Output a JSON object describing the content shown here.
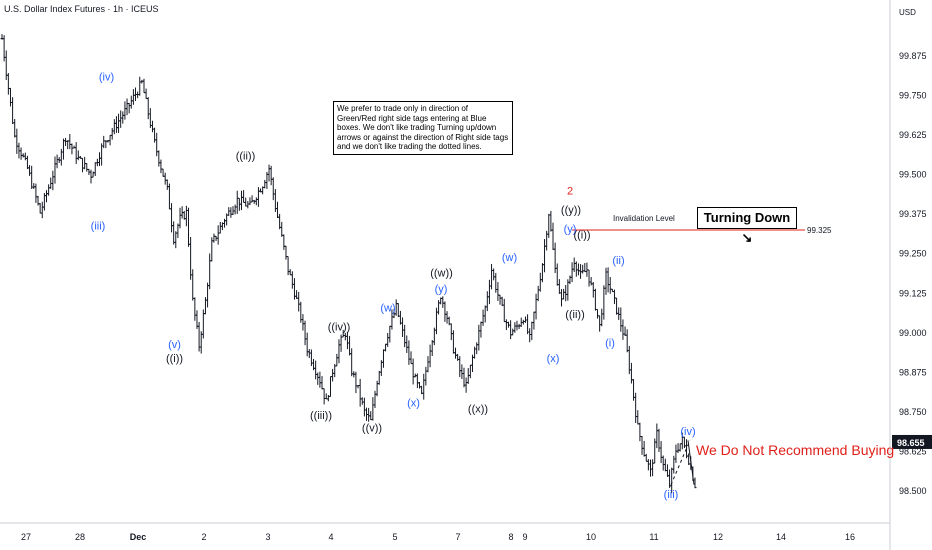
{
  "chart_title": "U.S. Dollar Index Futures · 1h · ICEUS",
  "currency": "USD",
  "note": "We prefer to trade only in direction of Green/Red right side tags entering at Blue boxes. We don't like trading Turning up/down arrows or against the direction of Right side tags and we don't like trading the dotted lines.",
  "turning_label": "Turning Down",
  "turning_arrow": "↘",
  "recommendation": "We Do Not Recommend Buying",
  "invalidation_label": "Invalidation Level",
  "colors": {
    "blue_label": "#2962ff",
    "red_label": "#e0201b",
    "black_label": "#131722",
    "invalidation_line": "#e0201b"
  },
  "chart_data": {
    "type": "bar",
    "subtype": "ohlc",
    "xlabel": "",
    "ylabel": "",
    "ylim": [
      98.42,
      100.05
    ],
    "x_ticks": [
      "27",
      "28",
      "Dec",
      "2",
      "3",
      "4",
      "5",
      "7",
      "8",
      "9",
      "10",
      "11",
      "12",
      "14",
      "16"
    ],
    "y_ticks": [
      "99.875",
      "99.750",
      "99.625",
      "99.500",
      "99.375",
      "99.250",
      "99.125",
      "99.000",
      "98.875",
      "98.750",
      "98.625",
      "98.500"
    ],
    "last_price": "98.655",
    "invalidation_level": "99.325",
    "price_path": [
      [
        0,
        99.93
      ],
      [
        2,
        99.62
      ],
      [
        4,
        99.52
      ],
      [
        6,
        99.38
      ],
      [
        8,
        99.5
      ],
      [
        10,
        99.62
      ],
      [
        12,
        99.55
      ],
      [
        14,
        99.5
      ],
      [
        16,
        99.6
      ],
      [
        18,
        99.66
      ],
      [
        20,
        99.72
      ],
      [
        22,
        99.79
      ],
      [
        24,
        99.6
      ],
      [
        26,
        99.45
      ],
      [
        27,
        99.3
      ],
      [
        28,
        99.36
      ],
      [
        29,
        99.38
      ],
      [
        30,
        99.1
      ],
      [
        31,
        98.96
      ],
      [
        32,
        99.1
      ],
      [
        33,
        99.28
      ],
      [
        35,
        99.36
      ],
      [
        37,
        99.42
      ],
      [
        39,
        99.4
      ],
      [
        41,
        99.47
      ],
      [
        42,
        99.52
      ],
      [
        43,
        99.4
      ],
      [
        44,
        99.3
      ],
      [
        45,
        99.2
      ],
      [
        46,
        99.13
      ],
      [
        47,
        99.05
      ],
      [
        48,
        98.95
      ],
      [
        50,
        98.85
      ],
      [
        51,
        98.78
      ],
      [
        52,
        98.88
      ],
      [
        53,
        98.96
      ],
      [
        54,
        99.0
      ],
      [
        55,
        98.88
      ],
      [
        56,
        98.82
      ],
      [
        57,
        98.75
      ],
      [
        58,
        98.72
      ],
      [
        59,
        98.85
      ],
      [
        60,
        98.95
      ],
      [
        61,
        99.02
      ],
      [
        62,
        99.08
      ],
      [
        63,
        99.0
      ],
      [
        64,
        98.92
      ],
      [
        65,
        98.85
      ],
      [
        66,
        98.8
      ],
      [
        67,
        98.92
      ],
      [
        68,
        99.02
      ],
      [
        69,
        99.12
      ],
      [
        70,
        99.05
      ],
      [
        71,
        98.95
      ],
      [
        72,
        98.88
      ],
      [
        73,
        98.83
      ],
      [
        74,
        98.92
      ],
      [
        75,
        99.0
      ],
      [
        76,
        99.08
      ],
      [
        77,
        99.2
      ],
      [
        78,
        99.12
      ],
      [
        79,
        99.05
      ],
      [
        80,
        99.0
      ],
      [
        81,
        99.02
      ],
      [
        82,
        99.05
      ],
      [
        83,
        98.98
      ],
      [
        84,
        99.1
      ],
      [
        85,
        99.22
      ],
      [
        86,
        99.38
      ],
      [
        87,
        99.2
      ],
      [
        88,
        99.1
      ],
      [
        89,
        99.15
      ],
      [
        90,
        99.23
      ],
      [
        91,
        99.18
      ],
      [
        92,
        99.2
      ],
      [
        93,
        99.12
      ],
      [
        94,
        99.02
      ],
      [
        95,
        99.18
      ],
      [
        96,
        99.12
      ],
      [
        97,
        99.05
      ],
      [
        98,
        98.98
      ],
      [
        99,
        98.85
      ],
      [
        100,
        98.7
      ],
      [
        101,
        98.62
      ],
      [
        102,
        98.56
      ],
      [
        103,
        98.68
      ],
      [
        104,
        98.58
      ],
      [
        105,
        98.52
      ],
      [
        106,
        98.63
      ],
      [
        107,
        98.66
      ],
      [
        108,
        98.6
      ],
      [
        109,
        98.52
      ]
    ],
    "wave_labels": [
      {
        "text": "(iii)",
        "x": 98.0,
        "y": 99.34,
        "color": "blue"
      },
      {
        "text": "(iv)",
        "x": 106.5,
        "y": 99.81,
        "color": "blue"
      },
      {
        "text": "(v)",
        "x": 174.5,
        "y": 98.965,
        "color": "blue"
      },
      {
        "text": "((i))",
        "x": 174.5,
        "y": 98.92,
        "color": "black"
      },
      {
        "text": "((ii))",
        "x": 245.5,
        "y": 99.56,
        "color": "black"
      },
      {
        "text": "((iii))",
        "x": 321.0,
        "y": 98.74,
        "color": "black"
      },
      {
        "text": "((iv))",
        "x": 339.0,
        "y": 99.02,
        "color": "black"
      },
      {
        "text": "((v))",
        "x": 372.0,
        "y": 98.7,
        "color": "black"
      },
      {
        "text": "(w)",
        "x": 388.0,
        "y": 99.08,
        "color": "blue"
      },
      {
        "text": "(x)",
        "x": 413.5,
        "y": 98.78,
        "color": "blue"
      },
      {
        "text": "((w))",
        "x": 441.5,
        "y": 99.19,
        "color": "black"
      },
      {
        "text": "(y)",
        "x": 441.0,
        "y": 99.14,
        "color": "blue"
      },
      {
        "text": "((x))",
        "x": 478.0,
        "y": 98.76,
        "color": "black"
      },
      {
        "text": "(w)",
        "x": 509.5,
        "y": 99.24,
        "color": "blue"
      },
      {
        "text": "(x)",
        "x": 553.0,
        "y": 98.92,
        "color": "blue"
      },
      {
        "text": "2",
        "x": 570.0,
        "y": 99.45,
        "color": "red"
      },
      {
        "text": "((y))",
        "x": 571.0,
        "y": 99.39,
        "color": "black"
      },
      {
        "text": "(y)",
        "x": 570.0,
        "y": 99.33,
        "color": "blue"
      },
      {
        "text": "((i))",
        "x": 582.0,
        "y": 99.31,
        "color": "black"
      },
      {
        "text": "((ii))",
        "x": 575.0,
        "y": 99.06,
        "color": "black"
      },
      {
        "text": "(ii)",
        "x": 618.5,
        "y": 99.23,
        "color": "blue"
      },
      {
        "text": "(i)",
        "x": 610.0,
        "y": 98.97,
        "color": "blue"
      },
      {
        "text": "(iv)",
        "x": 688.0,
        "y": 98.69,
        "color": "blue"
      },
      {
        "text": "(iii)",
        "x": 671.0,
        "y": 98.49,
        "color": "blue"
      }
    ],
    "grid": false,
    "legend": "none"
  }
}
